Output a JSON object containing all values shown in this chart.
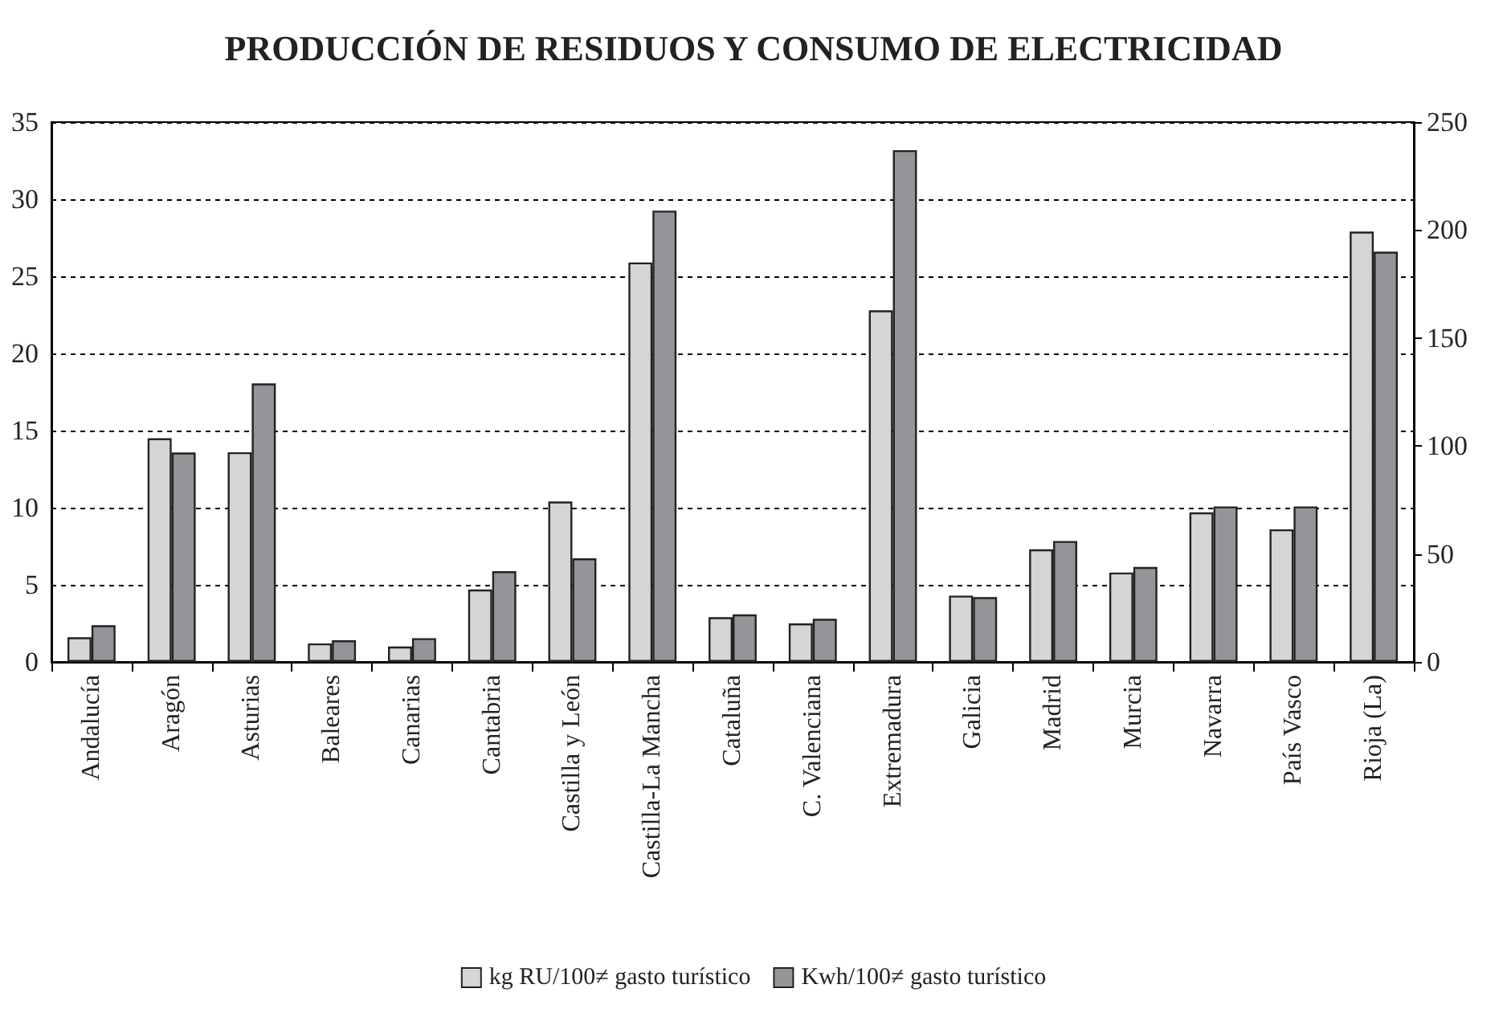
{
  "chart_data": {
    "type": "bar",
    "title": "PRODUCCIÓN DE RESIDUOS Y CONSUMO DE ELECTRICIDAD",
    "categories": [
      "Andalucía",
      "Aragón",
      "Asturias",
      "Baleares",
      "Canarias",
      "Cantabria",
      "Castilla y León",
      "Castilla-La Mancha",
      "Cataluña",
      "C. Valenciana",
      "Extremadura",
      "Galicia",
      "Madrid",
      "Murcia",
      "Navarra",
      "País Vasco",
      "Rioja (La)"
    ],
    "series": [
      {
        "name": "kg RU/100≠ gasto turístico",
        "color": "#d4d5d7",
        "values": [
          1.6,
          14.5,
          13.6,
          1.2,
          1.0,
          4.7,
          10.4,
          25.9,
          2.9,
          2.5,
          22.8,
          4.3,
          7.3,
          5.8,
          9.7,
          8.6,
          27.9
        ]
      },
      {
        "name": "Kwh/100≠ gasto turístico",
        "color": "#939598",
        "axis": "y2",
        "values": [
          17,
          97,
          129,
          10,
          11,
          42,
          48,
          209,
          22,
          20,
          237,
          30,
          56,
          44,
          72,
          72,
          190
        ]
      }
    ],
    "ylim": [
      0,
      35
    ],
    "yticks": [
      0,
      5,
      10,
      15,
      20,
      25,
      30,
      35
    ],
    "y2lim": [
      0,
      250
    ],
    "y2ticks": [
      0,
      50,
      100,
      150,
      200,
      250
    ],
    "grid": "y",
    "legend": "bottom"
  }
}
